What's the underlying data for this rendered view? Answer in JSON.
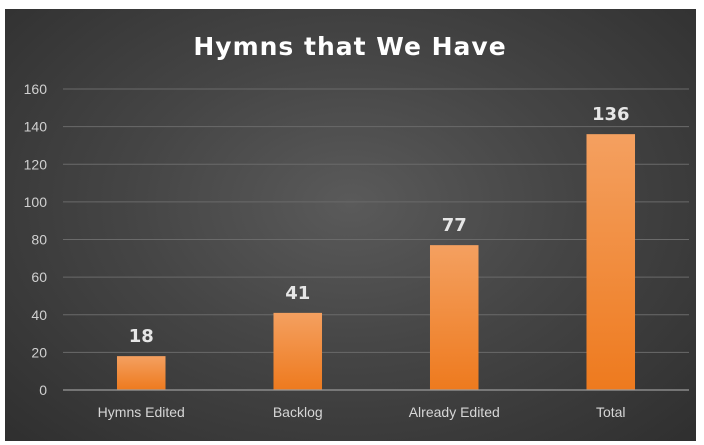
{
  "chart_data": {
    "type": "bar",
    "title": "Hymns that We Have",
    "categories": [
      "Hymns Edited",
      "Backlog",
      "Already Edited",
      "Total"
    ],
    "values": [
      18,
      41,
      77,
      136
    ],
    "data_labels": [
      "18",
      "41",
      "77",
      "136"
    ],
    "ylim": [
      0,
      160
    ],
    "yticks": [
      "0",
      "20",
      "40",
      "60",
      "80",
      "100",
      "120",
      "140",
      "160"
    ],
    "xlabel": "",
    "ylabel": "",
    "grid": true,
    "legend": "none",
    "colors": {
      "bar_top": "#f4a060",
      "bar_bottom": "#ee7a1e",
      "background": "#454545"
    }
  }
}
